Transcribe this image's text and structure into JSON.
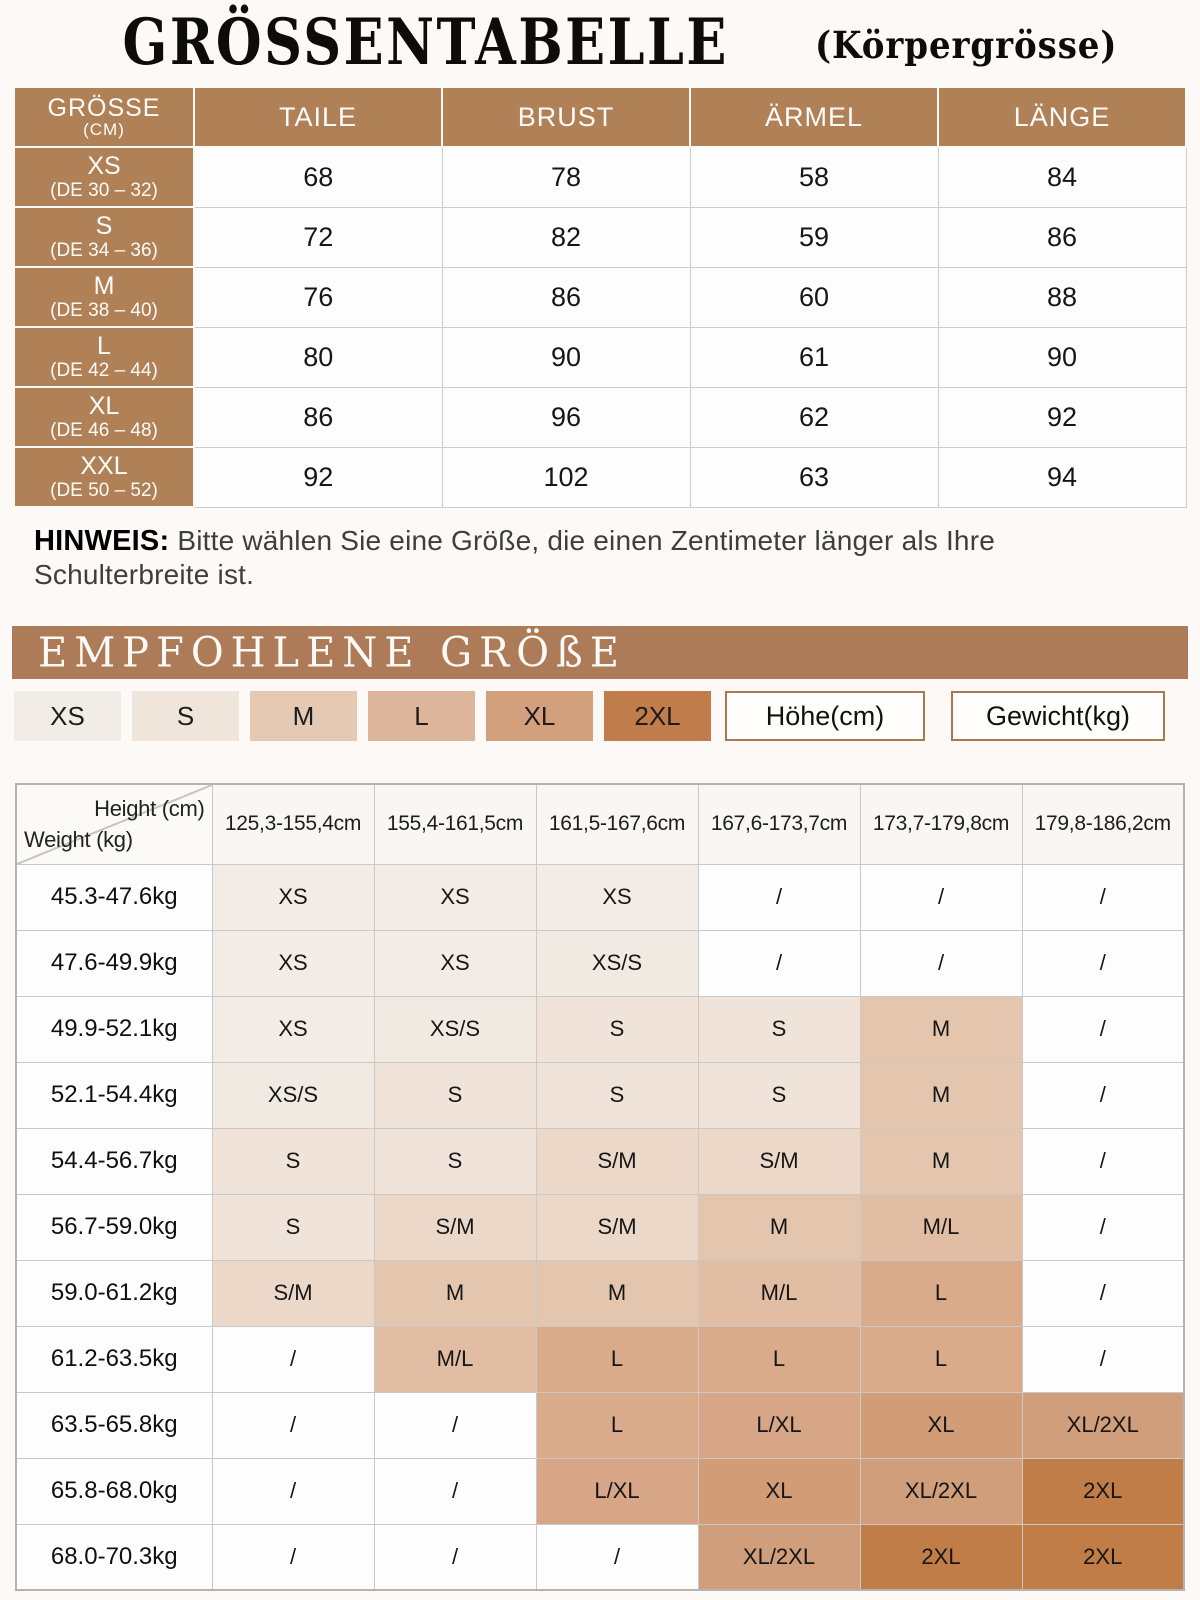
{
  "title": {
    "main": "GRÖSSENTABELLE",
    "sub": "(Körpergrösse)"
  },
  "size_table": {
    "corner_header": {
      "line1": "GRÖSSE",
      "line2": "(CM)"
    },
    "columns": [
      "TAILE",
      "BRUST",
      "ÄRMEL",
      "LÄNGE"
    ],
    "rows": [
      {
        "size": "XS",
        "de_range": "(DE 30 – 32)",
        "taille": "68",
        "brust": "78",
        "aermel": "58",
        "laenge": "84"
      },
      {
        "size": "S",
        "de_range": "(DE 34 – 36)",
        "taille": "72",
        "brust": "82",
        "aermel": "59",
        "laenge": "86"
      },
      {
        "size": "M",
        "de_range": "(DE 38 – 40)",
        "taille": "76",
        "brust": "86",
        "aermel": "60",
        "laenge": "88"
      },
      {
        "size": "L",
        "de_range": "(DE 42 – 44)",
        "taille": "80",
        "brust": "90",
        "aermel": "61",
        "laenge": "90"
      },
      {
        "size": "XL",
        "de_range": "(DE 46 – 48)",
        "taille": "86",
        "brust": "96",
        "aermel": "62",
        "laenge": "92"
      },
      {
        "size": "XXL",
        "de_range": "(DE 50 – 52)",
        "taille": "92",
        "brust": "102",
        "aermel": "63",
        "laenge": "94"
      }
    ]
  },
  "note": {
    "label": "HINWEIS:",
    "text": "Bitte wählen Sie eine Größe, die einen Zentimeter länger als Ihre Schulterbreite ist."
  },
  "recommend_banner": "EMPFOHLENE GRÖßE",
  "legend": {
    "sizes": [
      {
        "label": "XS",
        "color": "#f2ece7"
      },
      {
        "label": "S",
        "color": "#f0e5db"
      },
      {
        "label": "M",
        "color": "#e6c9b2"
      },
      {
        "label": "L",
        "color": "#dcb59b"
      },
      {
        "label": "XL",
        "color": "#d3a07d"
      },
      {
        "label": "2XL",
        "color": "#c07c4b"
      }
    ],
    "height_label": "Höhe(cm)",
    "weight_label": "Gewicht(kg)"
  },
  "matrix": {
    "corner": {
      "top_label": "Height (cm)",
      "bottom_label": "Weight (kg)"
    },
    "height_columns": [
      "125,3-155,4cm",
      "155,4-161,5cm",
      "161,5-167,6cm",
      "167,6-173,7cm",
      "173,7-179,8cm",
      "179,8-186,2cm"
    ],
    "rows": [
      {
        "weight": "45.3-47.6kg",
        "cells": [
          "XS",
          "XS",
          "XS",
          "/",
          "/",
          "/"
        ]
      },
      {
        "weight": "47.6-49.9kg",
        "cells": [
          "XS",
          "XS",
          "XS/S",
          "/",
          "/",
          "/"
        ]
      },
      {
        "weight": "49.9-52.1kg",
        "cells": [
          "XS",
          "XS/S",
          "S",
          "S",
          "M",
          "/"
        ]
      },
      {
        "weight": "52.1-54.4kg",
        "cells": [
          "XS/S",
          "S",
          "S",
          "S",
          "M",
          "/"
        ]
      },
      {
        "weight": "54.4-56.7kg",
        "cells": [
          "S",
          "S",
          "S/M",
          "S/M",
          "M",
          "/"
        ]
      },
      {
        "weight": "56.7-59.0kg",
        "cells": [
          "S",
          "S/M",
          "S/M",
          "M",
          "M/L",
          "/"
        ]
      },
      {
        "weight": "59.0-61.2kg",
        "cells": [
          "S/M",
          "M",
          "M",
          "M/L",
          "L",
          "/"
        ]
      },
      {
        "weight": "61.2-63.5kg",
        "cells": [
          "/",
          "M/L",
          "L",
          "L",
          "L",
          "/"
        ]
      },
      {
        "weight": "63.5-65.8kg",
        "cells": [
          "/",
          "/",
          "L",
          "L/XL",
          "XL",
          "XL/2XL"
        ]
      },
      {
        "weight": "65.8-68.0kg",
        "cells": [
          "/",
          "/",
          "L/XL",
          "XL",
          "XL/2XL",
          "2XL"
        ]
      },
      {
        "weight": "68.0-70.3kg",
        "cells": [
          "/",
          "/",
          "/",
          "XL/2XL",
          "2XL",
          "2XL"
        ]
      }
    ]
  },
  "colors": {
    "brown_header": "#b08156",
    "banner_brown": "#ad7b58",
    "cell_colors": {
      "XS": "#f3ece6",
      "XS/S": "#f1eae2",
      "S": "#f0e3d9",
      "S/M": "#ebd8c9",
      "M": "#e4c6ae",
      "M/L": "#e0bda3",
      "L": "#d9ab8b",
      "L/XL": "#d6a687",
      "XL": "#d19c76",
      "XL/2XL": "#d09e7a",
      "2XL": "#c17d47",
      "/": "#fdfdfd"
    }
  }
}
